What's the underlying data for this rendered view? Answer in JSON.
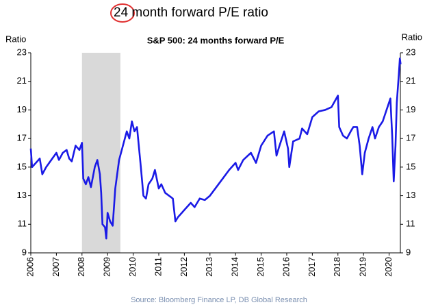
{
  "chart_data": {
    "type": "line",
    "title": "24 month forward P/E ratio",
    "subtitle": "S&P 500: 24 months forward P/E",
    "ylabel": "Ratio",
    "y2label": "Ratio",
    "source": "Source:  Bloomberg Finance LP, DB Global Research",
    "color": "#1a1ae6",
    "x": [
      2006.0,
      2006.05,
      2006.2,
      2006.35,
      2006.45,
      2006.6,
      2006.8,
      2007.0,
      2007.1,
      2007.25,
      2007.4,
      2007.5,
      2007.6,
      2007.75,
      2007.9,
      2008.0,
      2008.05,
      2008.15,
      2008.25,
      2008.35,
      2008.5,
      2008.6,
      2008.7,
      2008.75,
      2008.8,
      2008.9,
      2008.95,
      2009.0,
      2009.1,
      2009.2,
      2009.3,
      2009.45,
      2009.6,
      2009.75,
      2009.85,
      2009.95,
      2010.05,
      2010.15,
      2010.3,
      2010.4,
      2010.5,
      2010.6,
      2010.75,
      2010.85,
      2011.0,
      2011.1,
      2011.25,
      2011.4,
      2011.55,
      2011.65,
      2011.75,
      2011.9,
      2012.0,
      2012.25,
      2012.4,
      2012.6,
      2012.8,
      2013.0,
      2013.25,
      2013.5,
      2013.75,
      2014.0,
      2014.1,
      2014.3,
      2014.6,
      2014.8,
      2015.0,
      2015.25,
      2015.5,
      2015.6,
      2015.7,
      2015.9,
      2016.05,
      2016.1,
      2016.25,
      2016.5,
      2016.6,
      2016.8,
      2017.0,
      2017.25,
      2017.5,
      2017.75,
      2018.0,
      2018.05,
      2018.2,
      2018.35,
      2018.5,
      2018.6,
      2018.75,
      2018.85,
      2018.95,
      2019.05,
      2019.2,
      2019.35,
      2019.45,
      2019.6,
      2019.75,
      2019.9,
      2020.05,
      2020.12,
      2020.18,
      2020.25,
      2020.3,
      2020.38,
      2020.42,
      2020.45
    ],
    "values": [
      16.3,
      15.0,
      15.3,
      15.6,
      14.5,
      15.0,
      15.5,
      16.0,
      15.5,
      16.0,
      16.2,
      15.6,
      15.4,
      16.5,
      16.2,
      16.7,
      14.2,
      13.8,
      14.3,
      13.6,
      15.0,
      15.5,
      14.5,
      13.2,
      11.0,
      10.8,
      10.0,
      11.8,
      11.2,
      10.9,
      13.5,
      15.5,
      16.5,
      17.5,
      17.0,
      18.2,
      17.5,
      17.8,
      15.0,
      13.0,
      12.8,
      13.8,
      14.2,
      14.8,
      13.5,
      13.8,
      13.2,
      13.0,
      12.8,
      11.2,
      11.5,
      11.8,
      12.0,
      12.5,
      12.2,
      12.8,
      12.7,
      13.0,
      13.6,
      14.2,
      14.8,
      15.3,
      14.8,
      15.5,
      16.0,
      15.3,
      16.5,
      17.2,
      17.5,
      15.8,
      16.4,
      17.5,
      16.3,
      15.0,
      16.8,
      17.0,
      17.7,
      17.3,
      18.5,
      18.9,
      19.0,
      19.2,
      20.0,
      17.8,
      17.2,
      17.0,
      17.5,
      17.8,
      17.8,
      16.5,
      14.5,
      16.0,
      17.0,
      17.8,
      17.0,
      17.8,
      18.2,
      19.0,
      19.8,
      17.2,
      14.0,
      16.5,
      19.5,
      21.5,
      22.6,
      22.2
    ],
    "shaded_ranges": [
      {
        "x": [
          2008.0,
          2009.5
        ],
        "color": "#d9d9d9"
      }
    ],
    "xlim": [
      2006,
      2020.6
    ],
    "xticks": [
      2006,
      2007,
      2008,
      2009,
      2010,
      2011,
      2012,
      2013,
      2014,
      2015,
      2016,
      2017,
      2018,
      2019,
      2020
    ],
    "ylim": [
      9,
      23
    ],
    "yticks": [
      9,
      11,
      13,
      15,
      17,
      19,
      21,
      23
    ],
    "y2lim": [
      9,
      23
    ],
    "y2ticks": [
      9,
      11,
      13,
      15,
      17,
      19,
      21,
      23
    ],
    "grid": false
  }
}
